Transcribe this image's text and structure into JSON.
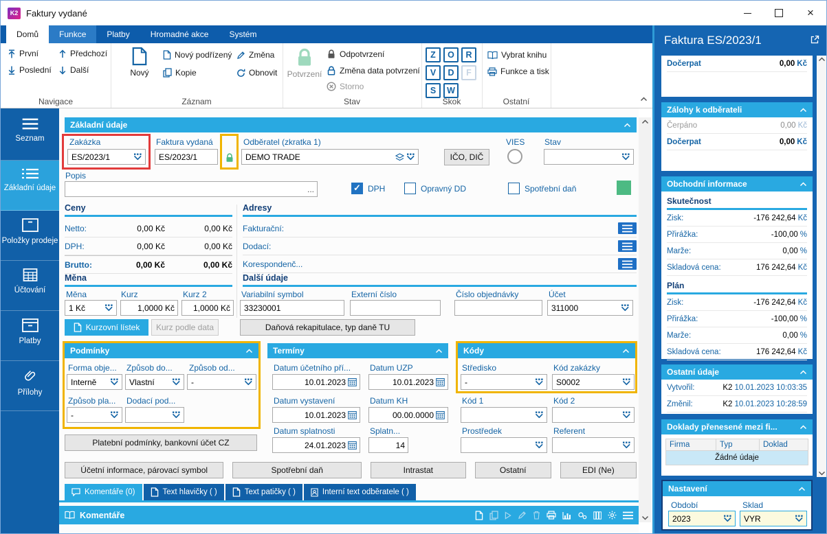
{
  "window": {
    "logo": "K2",
    "title": "Faktury vydané"
  },
  "ribbon": {
    "tabs": [
      {
        "label": "Domů"
      },
      {
        "label": "Funkce"
      },
      {
        "label": "Platby"
      },
      {
        "label": "Hromadné akce"
      },
      {
        "label": "Systém"
      }
    ],
    "navigace": {
      "title": "Navigace",
      "first": "První",
      "last": "Poslední",
      "prev": "Předchozí",
      "next": "Další"
    },
    "zaznam": {
      "title": "Záznam",
      "new": "Nový",
      "new_child": "Nový podřízený",
      "copy": "Kopie",
      "change": "Změna",
      "refresh": "Obnovit"
    },
    "stav": {
      "title": "Stav",
      "confirm": "Potvrzení",
      "unconfirm": "Odpotvrzení",
      "change_date": "Změna data potvrzení",
      "storno": "Storno"
    },
    "skok": {
      "title": "Skok",
      "letters": [
        "Z",
        "O",
        "R",
        "V",
        "D",
        "F",
        "S",
        "W"
      ]
    },
    "ostatni": {
      "title": "Ostatní",
      "select_book": "Vybrat knihu",
      "func_print": "Funkce a tisk"
    }
  },
  "sidebar": {
    "items": [
      {
        "label": "Seznam"
      },
      {
        "label": "Základní údaje"
      },
      {
        "label": "Položky prodeje"
      },
      {
        "label": "Účtování"
      },
      {
        "label": "Platby"
      },
      {
        "label": "Přílohy"
      }
    ]
  },
  "form": {
    "section_title": "Základní údaje",
    "zakazka": {
      "label": "Zakázka",
      "value": "ES/2023/1"
    },
    "faktura": {
      "label": "Faktura vydaná",
      "value": "ES/2023/1"
    },
    "odberatel": {
      "label": "Odběratel (zkratka 1)",
      "value": "DEMO TRADE"
    },
    "ico_dic": "IČO, DIČ",
    "vies": "VIES",
    "stav": {
      "label": "Stav",
      "value": ""
    },
    "popis": {
      "label": "Popis",
      "value": "",
      "more": "..."
    },
    "dph": "DPH",
    "opravny": "Opravný DD",
    "spotrebni": "Spotřební daň",
    "ceny": {
      "title": "Ceny",
      "rows": [
        {
          "label": "Netto:",
          "v1": "0,00 Kč",
          "v2": "0,00 Kč"
        },
        {
          "label": "DPH:",
          "v1": "0,00 Kč",
          "v2": "0,00 Kč"
        },
        {
          "label": "Brutto:",
          "v1": "0,00 Kč",
          "v2": "0,00 Kč"
        }
      ]
    },
    "adresy": {
      "title": "Adresy",
      "rows": [
        "Fakturační:",
        "Dodací:",
        "Korespondenč..."
      ]
    },
    "mena": {
      "title": "Měna",
      "mena": {
        "label": "Měna",
        "value": "1 Kč"
      },
      "kurz": {
        "label": "Kurz",
        "value": "1,0000 Kč"
      },
      "kurz2": {
        "label": "Kurz 2",
        "value": "1,0000 Kč"
      },
      "btn_kurzovni": "Kurzovní lístek",
      "btn_kurz_data": "Kurz podle data"
    },
    "dalsi": {
      "title": "Další údaje",
      "vs": {
        "label": "Variabilní symbol",
        "value": "33230001"
      },
      "ext": {
        "label": "Externí číslo",
        "value": ""
      },
      "obj": {
        "label": "Číslo objednávky",
        "value": ""
      },
      "ucet": {
        "label": "Účet",
        "value": "311000"
      },
      "btn_danova": "Daňová rekapitulace, typ daně TU"
    },
    "podminky": {
      "title": "Podmínky",
      "f1": {
        "label": "Forma obje...",
        "value": "Interně"
      },
      "f2": {
        "label": "Způsob do...",
        "value": "Vlastní"
      },
      "f3": {
        "label": "Způsob od...",
        "value": "-"
      },
      "f4": {
        "label": "Způsob pla...",
        "value": "-"
      },
      "f5": {
        "label": "Dodací pod...",
        "value": ""
      }
    },
    "btn_platebni": "Platební podmínky, bankovní účet CZ",
    "terminy": {
      "title": "Termíny",
      "d1": {
        "label": "Datum účetního pří...",
        "value": "10.01.2023"
      },
      "d2": {
        "label": "Datum UZP",
        "value": "10.01.2023"
      },
      "d3": {
        "label": "Datum vystavení",
        "value": "10.01.2023"
      },
      "d4": {
        "label": "Datum KH",
        "value": "00.00.0000"
      },
      "d5": {
        "label": "Datum splatnosti",
        "value": "24.01.2023"
      },
      "d6": {
        "label": "Splatn...",
        "value": "14"
      }
    },
    "kody": {
      "title": "Kódy",
      "k1": {
        "label": "Středisko",
        "value": "-"
      },
      "k2": {
        "label": "Kód zakázky",
        "value": "S0002"
      },
      "k3": {
        "label": "Kód 1",
        "value": ""
      },
      "k4": {
        "label": "Kód 2",
        "value": ""
      },
      "k5": {
        "label": "Prostředek",
        "value": ""
      },
      "k6": {
        "label": "Referent",
        "value": ""
      }
    },
    "bottom_buttons": [
      "Účetní informace, párovací symbol",
      "Spotřební daň",
      "Intrastat",
      "Ostatní",
      "EDI (Ne)"
    ],
    "tabs": [
      {
        "label": "Komentáře (0)"
      },
      {
        "label": "Text hlavičky ( )"
      },
      {
        "label": "Text patičky ( )"
      },
      {
        "label": "Interní text odběratele ( )"
      }
    ],
    "komentare_title": "Komentáře"
  },
  "panel": {
    "title": "Faktura ES/2023/1",
    "docerpat": {
      "label": "Dočerpat",
      "value": "0,00",
      "unit": "Kč"
    },
    "zalohy": {
      "title": "Zálohy k odběrateli",
      "rows": [
        {
          "label": "Čerpáno",
          "value": "0,00",
          "unit": "Kč"
        },
        {
          "label": "Dočerpat",
          "value": "0,00",
          "unit": "Kč"
        }
      ]
    },
    "obchodni": {
      "title": "Obchodní informace",
      "skutecnost": {
        "title": "Skutečnost",
        "rows": [
          {
            "label": "Zisk:",
            "value": "-176 242,64",
            "unit": "Kč"
          },
          {
            "label": "Přirážka:",
            "value": "-100,00",
            "unit": "%"
          },
          {
            "label": "Marže:",
            "value": "0,00",
            "unit": "%"
          },
          {
            "label": "Skladová cena:",
            "value": "176 242,64",
            "unit": "Kč"
          }
        ]
      },
      "plan": {
        "title": "Plán",
        "rows": [
          {
            "label": "Zisk:",
            "value": "-176 242,64",
            "unit": "Kč"
          },
          {
            "label": "Přirážka:",
            "value": "-100,00",
            "unit": "%"
          },
          {
            "label": "Marže:",
            "value": "0,00",
            "unit": "%"
          },
          {
            "label": "Skladová cena:",
            "value": "176 242,64",
            "unit": "Kč"
          }
        ]
      }
    },
    "ostatni": {
      "title": "Ostatní údaje",
      "rows": [
        {
          "label": "Vytvořil:",
          "user": "K2",
          "datetime": "10.01.2023 10:03:35"
        },
        {
          "label": "Změnil:",
          "user": "K2",
          "datetime": "10.01.2023 10:28:59"
        }
      ]
    },
    "doklady": {
      "title": "Doklady přenesené mezi fi...",
      "columns": [
        "Firma",
        "Typ",
        "Doklad"
      ],
      "empty": "Žádné údaje"
    },
    "nastaveni": {
      "title": "Nastavení",
      "obdobi": {
        "label": "Období",
        "value": "2023"
      },
      "sklad": {
        "label": "Sklad",
        "value": "VYR"
      }
    }
  },
  "icons": {
    "dropdown": "squares-over-chevron",
    "calendar": "grid-calendar",
    "lock": "padlock",
    "storno": "circle-x",
    "document": "page",
    "copy": "double-page",
    "edit": "pencil",
    "refresh": "circular-arrows",
    "book": "open-book",
    "print": "printer",
    "external": "arrow-out-of-box",
    "menu": "three-bars",
    "attachment": "paperclip"
  }
}
